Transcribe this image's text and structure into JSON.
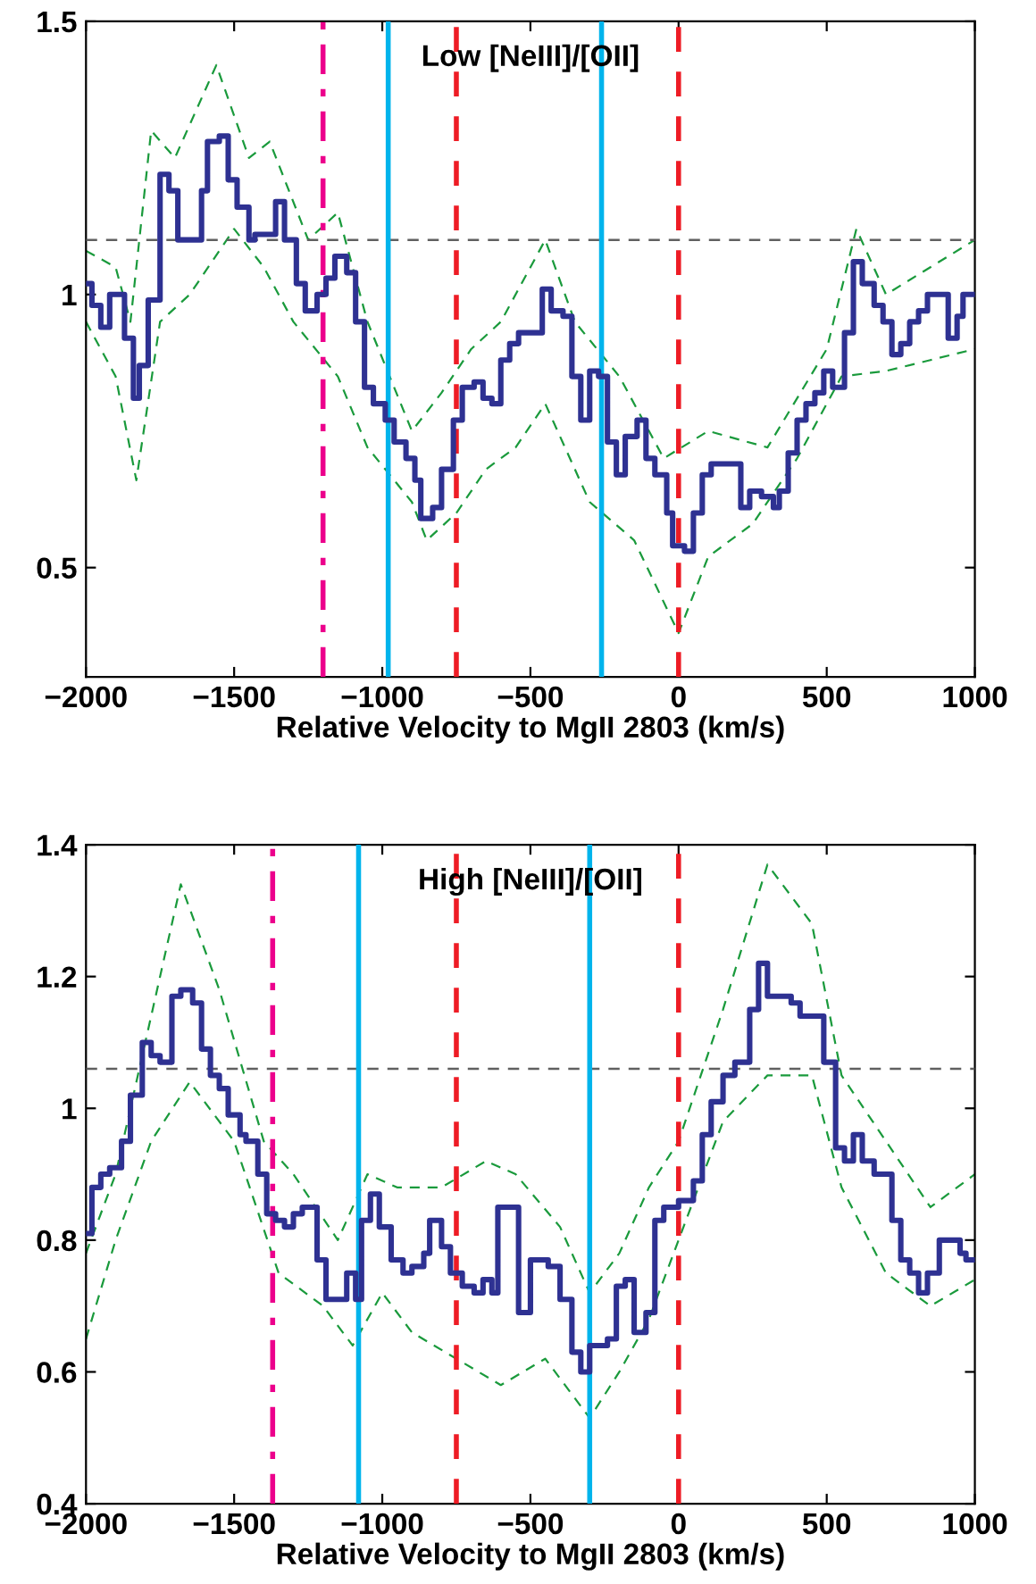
{
  "chart_data": [
    {
      "type": "step",
      "title": "Low [NeIII]/[OII]",
      "xlabel": "Relative Velocity to MgII 2803 (km/s)",
      "xlim": [
        -2000,
        1000
      ],
      "xticks": [
        {
          "value": -2000,
          "label": "−2000"
        },
        {
          "value": -1500,
          "label": "−1500"
        },
        {
          "value": -1000,
          "label": "−1000"
        },
        {
          "value": -500,
          "label": "−500"
        },
        0,
        500,
        1000
      ],
      "ylim": [
        0.3,
        1.5
      ],
      "yticks": [
        0.5,
        1,
        1.5
      ],
      "grid": false,
      "legend": false,
      "series": [
        {
          "type": "line",
          "line_style": "dashed",
          "color": "#1a9a3c",
          "x": [
            -2000,
            -1900,
            -1850,
            -1780,
            -1700,
            -1560,
            -1450,
            -1380,
            -1250,
            -1150,
            -1050,
            -900,
            -800,
            -700,
            -600,
            -450,
            -350,
            -200,
            -50,
            100,
            300,
            500,
            600,
            700,
            850,
            1000
          ],
          "values": [
            1.08,
            1.05,
            0.95,
            1.3,
            1.25,
            1.42,
            1.25,
            1.28,
            1.1,
            1.15,
            0.95,
            0.75,
            0.82,
            0.9,
            0.95,
            1.1,
            0.95,
            0.85,
            0.7,
            0.75,
            0.72,
            0.9,
            1.12,
            1.0,
            1.05,
            1.1
          ]
        },
        {
          "type": "line",
          "line_style": "dashed",
          "color": "#1a9a3c",
          "x": [
            -2000,
            -1900,
            -1830,
            -1750,
            -1650,
            -1500,
            -1400,
            -1300,
            -1150,
            -1050,
            -900,
            -850,
            -750,
            -650,
            -550,
            -450,
            -300,
            -150,
            0,
            100,
            250,
            400,
            550,
            700,
            850,
            1000
          ],
          "values": [
            0.95,
            0.85,
            0.66,
            0.95,
            1.0,
            1.12,
            1.05,
            0.95,
            0.85,
            0.72,
            0.62,
            0.55,
            0.6,
            0.68,
            0.72,
            0.8,
            0.62,
            0.55,
            0.38,
            0.52,
            0.58,
            0.7,
            0.85,
            0.86,
            0.88,
            0.9
          ]
        },
        {
          "line_style": "solid",
          "color": "#2e3192",
          "x": [
            -2000,
            -1980,
            -1950,
            -1920,
            -1870,
            -1840,
            -1820,
            -1790,
            -1750,
            -1720,
            -1690,
            -1610,
            -1590,
            -1550,
            -1520,
            -1490,
            -1450,
            -1430,
            -1360,
            -1330,
            -1290,
            -1260,
            -1220,
            -1190,
            -1160,
            -1120,
            -1090,
            -1060,
            -1030,
            -990,
            -960,
            -920,
            -890,
            -870,
            -830,
            -800,
            -760,
            -730,
            -690,
            -660,
            -630,
            -600,
            -570,
            -540,
            -460,
            -430,
            -390,
            -360,
            -330,
            -300,
            -270,
            -240,
            -210,
            -180,
            -140,
            -110,
            -80,
            -40,
            -20,
            20,
            50,
            80,
            110,
            210,
            240,
            280,
            320,
            340,
            370,
            400,
            430,
            460,
            490,
            520,
            560,
            590,
            620,
            660,
            690,
            720,
            750,
            780,
            810,
            840,
            910,
            940,
            960,
            1000
          ],
          "values": [
            1.02,
            0.98,
            0.94,
            1.0,
            0.92,
            0.81,
            0.87,
            0.99,
            1.22,
            1.19,
            1.1,
            1.19,
            1.28,
            1.29,
            1.21,
            1.16,
            1.1,
            1.11,
            1.17,
            1.1,
            1.02,
            0.97,
            1.0,
            1.03,
            1.07,
            1.04,
            0.95,
            0.83,
            0.8,
            0.77,
            0.73,
            0.7,
            0.66,
            0.59,
            0.61,
            0.68,
            0.77,
            0.83,
            0.84,
            0.81,
            0.8,
            0.88,
            0.91,
            0.93,
            1.01,
            0.97,
            0.96,
            0.85,
            0.77,
            0.86,
            0.85,
            0.73,
            0.67,
            0.74,
            0.77,
            0.7,
            0.67,
            0.6,
            0.54,
            0.53,
            0.6,
            0.67,
            0.69,
            0.61,
            0.64,
            0.63,
            0.61,
            0.64,
            0.71,
            0.77,
            0.8,
            0.82,
            0.86,
            0.83,
            0.93,
            1.06,
            1.02,
            0.98,
            0.95,
            0.89,
            0.91,
            0.95,
            0.97,
            1.0,
            0.92,
            0.96,
            1.0,
            1.0
          ]
        }
      ],
      "ref_lines": [
        {
          "axis": "y",
          "value": 1.1,
          "color": "#606060",
          "line_style": "dashed"
        },
        {
          "axis": "x",
          "value": -1200,
          "color": "#ec008c",
          "line_style": "dashdot"
        },
        {
          "axis": "x",
          "value": -980,
          "color": "#00b4ec",
          "line_style": "solid"
        },
        {
          "axis": "x",
          "value": -750,
          "color": "#ee1c25",
          "line_style": "dashed"
        },
        {
          "axis": "x",
          "value": -260,
          "color": "#00b4ec",
          "line_style": "solid"
        },
        {
          "axis": "x",
          "value": 0,
          "color": "#ee1c25",
          "line_style": "dashed"
        }
      ]
    },
    {
      "type": "step",
      "title": "High [NeIII]/[OII]",
      "xlabel": "Relative Velocity to MgII 2803 (km/s)",
      "xlim": [
        -2000,
        1000
      ],
      "xticks": [
        {
          "value": -2000,
          "label": "−2000"
        },
        {
          "value": -1500,
          "label": "−1500"
        },
        {
          "value": -1000,
          "label": "−1000"
        },
        {
          "value": -500,
          "label": "−500"
        },
        0,
        500,
        1000
      ],
      "ylim": [
        0.4,
        1.4
      ],
      "yticks": [
        0.4,
        0.6,
        0.8,
        1,
        1.2,
        1.4
      ],
      "grid": false,
      "legend": false,
      "series": [
        {
          "type": "line",
          "line_style": "dashed",
          "color": "#1a9a3c",
          "x": [
            -2000,
            -1900,
            -1800,
            -1680,
            -1550,
            -1400,
            -1300,
            -1150,
            -1050,
            -950,
            -800,
            -650,
            -550,
            -400,
            -300,
            -200,
            -100,
            0,
            150,
            300,
            450,
            550,
            700,
            850,
            1000
          ],
          "values": [
            0.78,
            0.9,
            1.1,
            1.34,
            1.18,
            0.95,
            0.9,
            0.8,
            0.9,
            0.88,
            0.88,
            0.92,
            0.9,
            0.82,
            0.72,
            0.78,
            0.88,
            0.95,
            1.15,
            1.37,
            1.28,
            1.05,
            0.95,
            0.85,
            0.9
          ]
        },
        {
          "type": "line",
          "line_style": "dashed",
          "color": "#1a9a3c",
          "x": [
            -2000,
            -1900,
            -1780,
            -1650,
            -1500,
            -1350,
            -1200,
            -1100,
            -1000,
            -900,
            -750,
            -600,
            -450,
            -300,
            -200,
            -100,
            0,
            150,
            300,
            450,
            550,
            700,
            850,
            1000
          ],
          "values": [
            0.65,
            0.8,
            0.95,
            1.04,
            0.95,
            0.75,
            0.7,
            0.64,
            0.72,
            0.66,
            0.62,
            0.58,
            0.62,
            0.53,
            0.6,
            0.68,
            0.8,
            0.98,
            1.05,
            1.05,
            0.88,
            0.75,
            0.7,
            0.74
          ]
        },
        {
          "line_style": "solid",
          "color": "#2e3192",
          "x": [
            -2000,
            -1980,
            -1950,
            -1920,
            -1880,
            -1850,
            -1810,
            -1780,
            -1750,
            -1710,
            -1680,
            -1640,
            -1610,
            -1580,
            -1550,
            -1520,
            -1480,
            -1460,
            -1420,
            -1390,
            -1360,
            -1330,
            -1300,
            -1270,
            -1220,
            -1190,
            -1120,
            -1090,
            -1070,
            -1040,
            -1010,
            -970,
            -930,
            -900,
            -860,
            -840,
            -800,
            -770,
            -730,
            -690,
            -660,
            -630,
            -610,
            -540,
            -500,
            -440,
            -400,
            -360,
            -330,
            -300,
            -240,
            -210,
            -180,
            -150,
            -110,
            -80,
            -50,
            0,
            50,
            80,
            110,
            150,
            190,
            240,
            270,
            300,
            380,
            410,
            490,
            530,
            560,
            590,
            620,
            660,
            720,
            750,
            780,
            810,
            840,
            880,
            950,
            970,
            1000
          ],
          "values": [
            0.81,
            0.88,
            0.9,
            0.91,
            0.95,
            1.02,
            1.1,
            1.08,
            1.07,
            1.17,
            1.18,
            1.16,
            1.09,
            1.05,
            1.03,
            0.99,
            0.96,
            0.95,
            0.9,
            0.84,
            0.83,
            0.82,
            0.84,
            0.85,
            0.77,
            0.71,
            0.75,
            0.71,
            0.83,
            0.87,
            0.82,
            0.77,
            0.75,
            0.76,
            0.78,
            0.83,
            0.79,
            0.75,
            0.73,
            0.72,
            0.74,
            0.72,
            0.85,
            0.69,
            0.77,
            0.76,
            0.71,
            0.63,
            0.6,
            0.64,
            0.65,
            0.73,
            0.74,
            0.66,
            0.69,
            0.83,
            0.85,
            0.86,
            0.89,
            0.96,
            1.01,
            1.05,
            1.07,
            1.15,
            1.22,
            1.17,
            1.16,
            1.14,
            1.07,
            0.94,
            0.92,
            0.96,
            0.92,
            0.9,
            0.83,
            0.77,
            0.75,
            0.72,
            0.75,
            0.8,
            0.78,
            0.77,
            0.77
          ]
        }
      ],
      "ref_lines": [
        {
          "axis": "y",
          "value": 1.06,
          "color": "#606060",
          "line_style": "dashed"
        },
        {
          "axis": "x",
          "value": -1370,
          "color": "#ec008c",
          "line_style": "dashdot"
        },
        {
          "axis": "x",
          "value": -1080,
          "color": "#00b4ec",
          "line_style": "solid"
        },
        {
          "axis": "x",
          "value": -750,
          "color": "#ee1c25",
          "line_style": "dashed"
        },
        {
          "axis": "x",
          "value": -300,
          "color": "#00b4ec",
          "line_style": "solid"
        },
        {
          "axis": "x",
          "value": 0,
          "color": "#ee1c25",
          "line_style": "dashed"
        }
      ]
    }
  ]
}
